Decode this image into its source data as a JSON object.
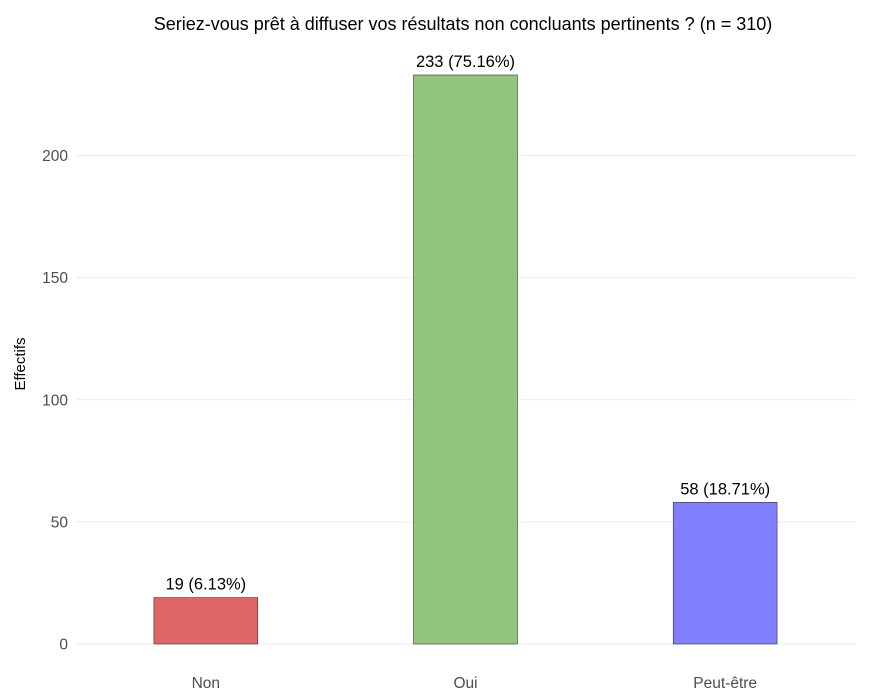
{
  "chart_data": {
    "type": "bar",
    "title": "Seriez-vous prêt à diffuser vos résultats non concluants pertinents ? (n = 310)",
    "xlabel": "",
    "ylabel": "Effectifs",
    "categories": [
      "Non",
      "Oui",
      "Peut-être"
    ],
    "values": [
      19,
      233,
      58
    ],
    "data_labels": [
      "19 (6.13%)",
      "233 (75.16%)",
      "58 (18.71%)"
    ],
    "colors": [
      "#e06666",
      "#93c47d",
      "#8080ff"
    ],
    "yticks": [
      0,
      50,
      100,
      150,
      200
    ],
    "ytick_labels": [
      "0",
      "50",
      "100",
      "150",
      "200"
    ],
    "ylim": [
      0,
      233
    ],
    "grid": true,
    "legend": "none"
  }
}
